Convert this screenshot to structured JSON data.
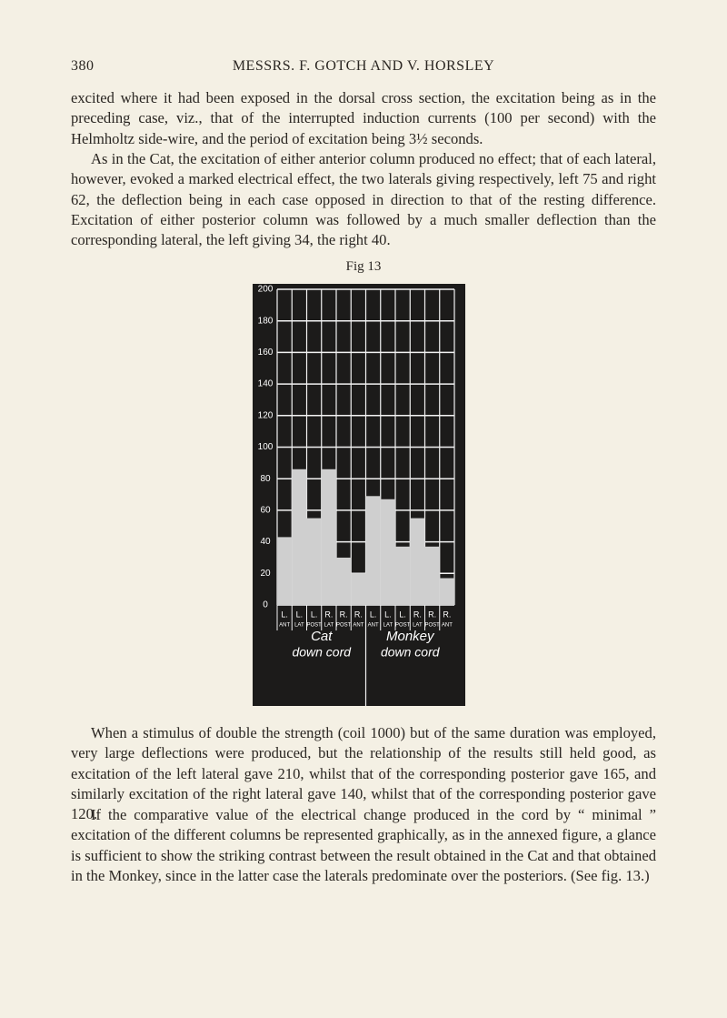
{
  "header": {
    "page_number": "380",
    "running_title": "MESSRS. F. GOTCH AND V. HORSLEY"
  },
  "paragraphs": [
    "excited where it had been exposed in the dorsal cross section, the excitation being as in the preceding case, viz., that of the interrupted induction currents (100 per second) with the Helmholtz side-wire, and the period of excitation being 3½ seconds.",
    "As in the Cat, the excitation of either anterior column produced no effect; that of each lateral, however, evoked a marked electrical effect, the two laterals giving respectively, left 75 and right 62, the deflection being in each case opposed in direction to that of the resting difference. Excitation of either posterior column was followed by a much smaller deflection than the corresponding lateral, the left giving 34, the right 40.",
    "When a stimulus of double the strength (coil 1000) but of the same duration was employed, very large deflections were produced, but the relationship of the results still held good, as excitation of the left lateral gave 210, whilst that of the corresponding posterior gave 165, and similarly excitation of the right lateral gave 140, whilst that of the corresponding posterior gave 120.",
    "If the comparative value of the electrical change produced in the cord by “ minimal ” excitation of the different columns be represented graphically, as in the annexed figure, a glance is sufficient to show the striking contrast between the result obtained in the Cat and that obtained in the Monkey, since in the latter case the laterals predominate over the posteriors. (See fig. 13.)"
  ],
  "figure": {
    "caption": "Fig 13",
    "chart": {
      "type": "bar",
      "ylim": [
        0,
        200
      ],
      "yticks": [
        0,
        20,
        40,
        60,
        80,
        100,
        120,
        140,
        160,
        180,
        200
      ],
      "categories": [
        {
          "side": "L.",
          "column": "ANT"
        },
        {
          "side": "L.",
          "column": "LAT"
        },
        {
          "side": "L.",
          "column": "POST"
        },
        {
          "side": "R.",
          "column": "LAT"
        },
        {
          "side": "R.",
          "column": "POST"
        },
        {
          "side": "R.",
          "column": "ANT"
        },
        {
          "side": "L.",
          "column": "ANT"
        },
        {
          "side": "L.",
          "column": "LAT"
        },
        {
          "side": "L.",
          "column": "POST"
        },
        {
          "side": "R.",
          "column": "LAT"
        },
        {
          "side": "R.",
          "column": "POST"
        },
        {
          "side": "R.",
          "column": "ANT"
        }
      ],
      "values": [
        43,
        86,
        55,
        86,
        30,
        20,
        69,
        67,
        37,
        55,
        37,
        17
      ],
      "color": "#cfcfcf",
      "groups": [
        {
          "name": "Cat",
          "subtitle": "down cord"
        },
        {
          "name": "Monkey",
          "subtitle": "down cord"
        }
      ]
    }
  }
}
